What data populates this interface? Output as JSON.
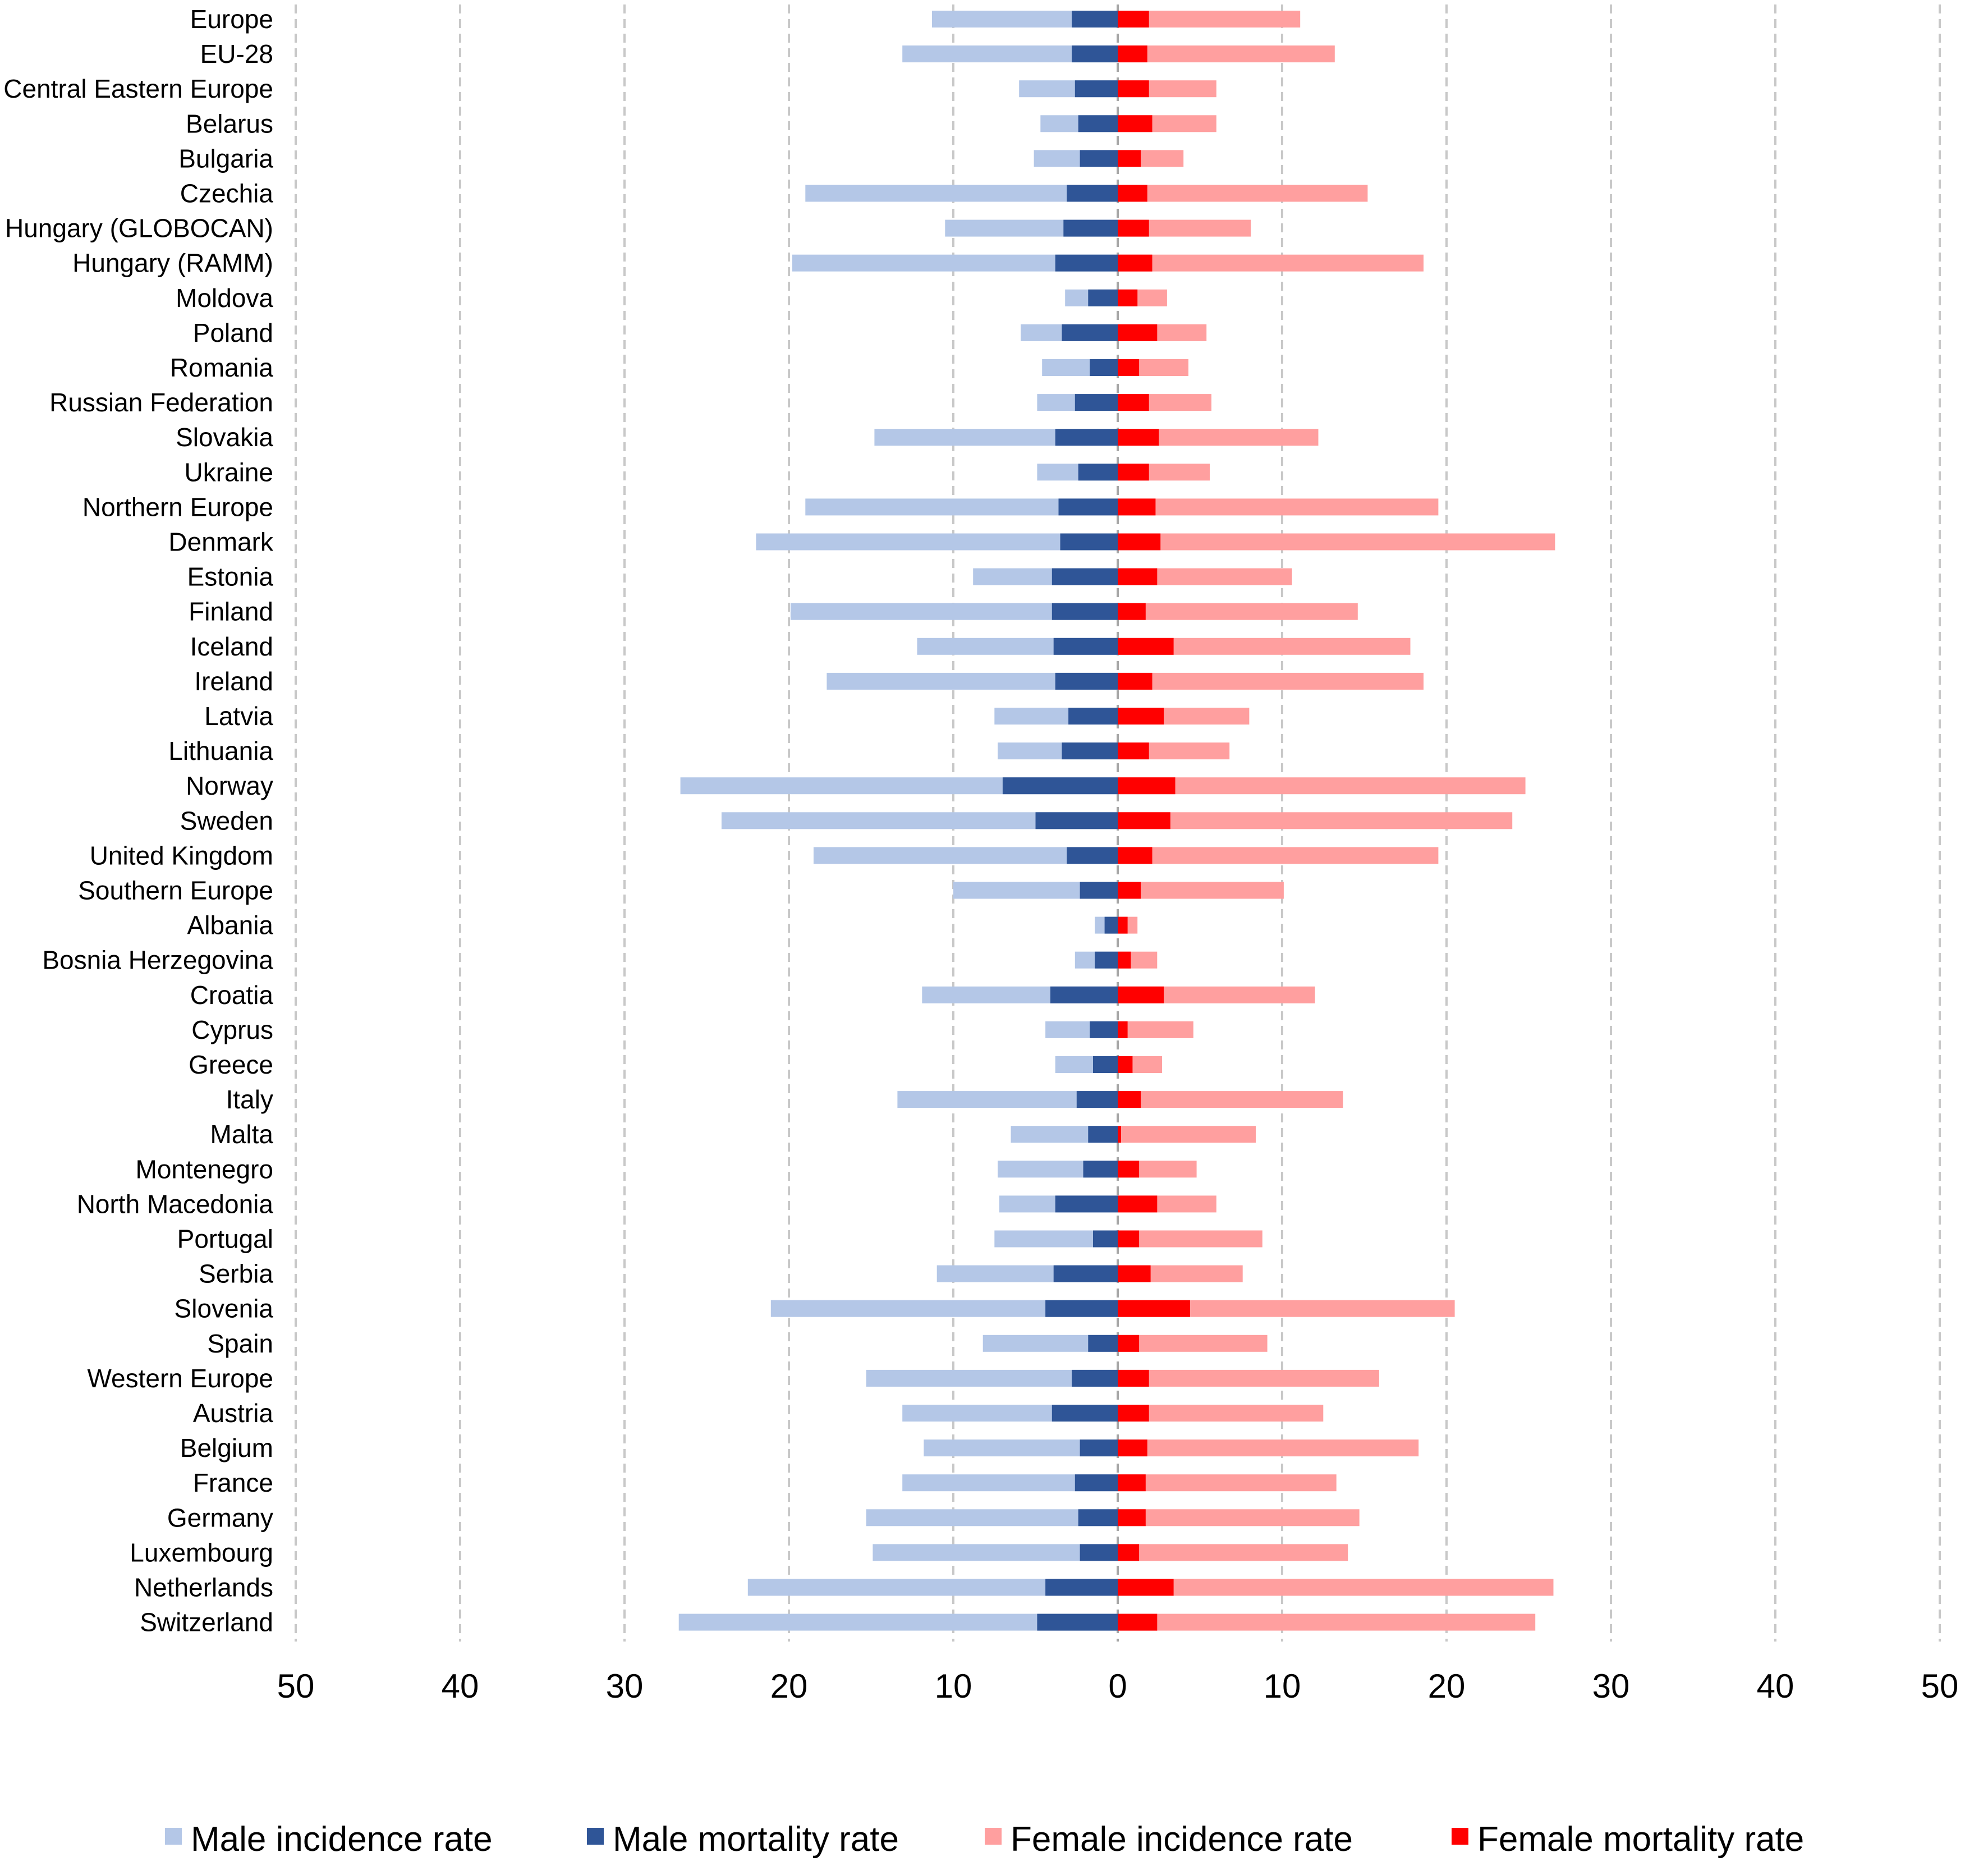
{
  "chart_data": {
    "type": "bar",
    "orientation": "horizontal-diverging",
    "title": "",
    "xlabel": "",
    "ylabel": "",
    "xlim": [
      -50,
      50
    ],
    "ticks": [
      50,
      40,
      30,
      20,
      10,
      0,
      10,
      20,
      30,
      40,
      50
    ],
    "grid": true,
    "legend_position": "bottom",
    "colors": {
      "male_incidence": "#b4c7e7",
      "male_mortality": "#2f5597",
      "female_incidence": "#ff9f9f",
      "female_mortality": "#ff0000"
    },
    "categories": [
      "Europe",
      "EU-28",
      "Central Eastern Europe",
      "Belarus",
      "Bulgaria",
      "Czechia",
      "Hungary (GLOBOCAN)",
      "Hungary (RAMM)",
      "Moldova",
      "Poland",
      "Romania",
      "Russian Federation",
      "Slovakia",
      "Ukraine",
      "Northern Europe",
      "Denmark",
      "Estonia",
      "Finland",
      "Iceland",
      "Ireland",
      "Latvia",
      "Lithuania",
      "Norway",
      "Sweden",
      "United Kingdom",
      "Southern Europe",
      "Albania",
      "Bosnia Herzegovina",
      "Croatia",
      "Cyprus",
      "Greece",
      "Italy",
      "Malta",
      "Montenegro",
      "North Macedonia",
      "Portugal",
      "Serbia",
      "Slovenia",
      "Spain",
      "Western Europe",
      "Austria",
      "Belgium",
      "France",
      "Germany",
      "Luxembourg",
      "Netherlands",
      "Switzerland"
    ],
    "series": [
      {
        "name": "Male incidence rate",
        "key": "male_incidence",
        "side": "left",
        "values": [
          11.3,
          13.1,
          6.0,
          4.7,
          5.1,
          19.0,
          10.5,
          19.8,
          3.2,
          5.9,
          4.6,
          4.9,
          14.8,
          4.9,
          19.0,
          22.0,
          8.8,
          19.9,
          12.2,
          17.7,
          7.5,
          7.3,
          26.6,
          24.1,
          18.5,
          10.0,
          1.4,
          2.6,
          11.9,
          4.4,
          3.8,
          13.4,
          6.5,
          7.3,
          7.2,
          7.5,
          11.0,
          21.1,
          8.2,
          15.3,
          13.1,
          11.8,
          13.1,
          15.3,
          14.9,
          22.5,
          26.7
        ]
      },
      {
        "name": "Male mortality rate",
        "key": "male_mortality",
        "side": "left",
        "values": [
          2.8,
          2.8,
          2.6,
          2.4,
          2.3,
          3.1,
          3.3,
          3.8,
          1.8,
          3.4,
          1.7,
          2.6,
          3.8,
          2.4,
          3.6,
          3.5,
          4.0,
          4.0,
          3.9,
          3.8,
          3.0,
          3.4,
          7.0,
          5.0,
          3.1,
          2.3,
          0.8,
          1.4,
          4.1,
          1.7,
          1.5,
          2.5,
          1.8,
          2.1,
          3.8,
          1.5,
          3.9,
          4.4,
          1.8,
          2.8,
          4.0,
          2.3,
          2.6,
          2.4,
          2.3,
          4.4,
          4.9
        ]
      },
      {
        "name": "Female incidence rate",
        "key": "female_incidence",
        "side": "right",
        "values": [
          11.1,
          13.2,
          6.0,
          6.0,
          4.0,
          15.2,
          8.1,
          18.6,
          3.0,
          5.4,
          4.3,
          5.7,
          12.2,
          5.6,
          19.5,
          26.6,
          10.6,
          14.6,
          17.8,
          18.6,
          8.0,
          6.8,
          24.8,
          24.0,
          19.5,
          10.1,
          1.2,
          2.4,
          12.0,
          4.6,
          2.7,
          13.7,
          8.4,
          4.8,
          6.0,
          8.8,
          7.6,
          20.5,
          9.1,
          15.9,
          12.5,
          18.3,
          13.3,
          14.7,
          14.0,
          26.5,
          25.4
        ]
      },
      {
        "name": "Female mortality rate",
        "key": "female_mortality",
        "side": "right",
        "values": [
          1.9,
          1.8,
          1.9,
          2.1,
          1.4,
          1.8,
          1.9,
          2.1,
          1.2,
          2.4,
          1.3,
          1.9,
          2.5,
          1.9,
          2.3,
          2.6,
          2.4,
          1.7,
          3.4,
          2.1,
          2.8,
          1.9,
          3.5,
          3.2,
          2.1,
          1.4,
          0.6,
          0.8,
          2.8,
          0.6,
          0.9,
          1.4,
          0.2,
          1.3,
          2.4,
          1.3,
          2.0,
          4.4,
          1.3,
          1.9,
          1.9,
          1.8,
          1.7,
          1.7,
          1.3,
          3.4,
          2.4
        ]
      }
    ]
  }
}
